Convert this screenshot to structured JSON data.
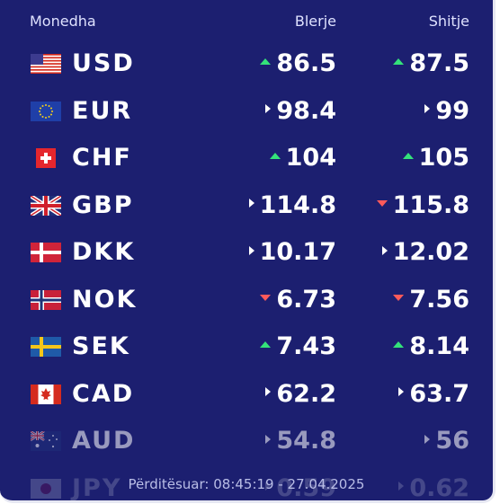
{
  "header": {
    "currency_label": "Monedha",
    "buy_label": "Blerje",
    "sell_label": "Shitje"
  },
  "colors": {
    "panel_bg": "#1c1f70",
    "up": "#34e27a",
    "down": "#ff5a5a",
    "same": "#ffffff"
  },
  "rows": [
    {
      "code": "USD",
      "flag": "us-flag-icon",
      "buy": "86.5",
      "buy_dir": "up",
      "sell": "87.5",
      "sell_dir": "up"
    },
    {
      "code": "EUR",
      "flag": "eu-flag-icon",
      "buy": "98.4",
      "buy_dir": "same",
      "sell": "99",
      "sell_dir": "same"
    },
    {
      "code": "CHF",
      "flag": "ch-flag-icon",
      "buy": "104",
      "buy_dir": "up",
      "sell": "105",
      "sell_dir": "up"
    },
    {
      "code": "GBP",
      "flag": "gb-flag-icon",
      "buy": "114.8",
      "buy_dir": "same",
      "sell": "115.8",
      "sell_dir": "down"
    },
    {
      "code": "DKK",
      "flag": "dk-flag-icon",
      "buy": "10.17",
      "buy_dir": "same",
      "sell": "12.02",
      "sell_dir": "same"
    },
    {
      "code": "NOK",
      "flag": "no-flag-icon",
      "buy": "6.73",
      "buy_dir": "down",
      "sell": "7.56",
      "sell_dir": "down"
    },
    {
      "code": "SEK",
      "flag": "se-flag-icon",
      "buy": "7.43",
      "buy_dir": "up",
      "sell": "8.14",
      "sell_dir": "up"
    },
    {
      "code": "CAD",
      "flag": "ca-flag-icon",
      "buy": "62.2",
      "buy_dir": "same",
      "sell": "63.7",
      "sell_dir": "same"
    },
    {
      "code": "AUD",
      "flag": "au-flag-icon",
      "buy": "54.8",
      "buy_dir": "same",
      "sell": "56",
      "sell_dir": "same"
    },
    {
      "code": "JPY",
      "flag": "jp-flag-icon",
      "buy": "0.59",
      "buy_dir": "same",
      "sell": "0.62",
      "sell_dir": "same"
    }
  ],
  "footer": {
    "updated": "Përditësuar: 08:45:19 - 27.04.2025"
  }
}
